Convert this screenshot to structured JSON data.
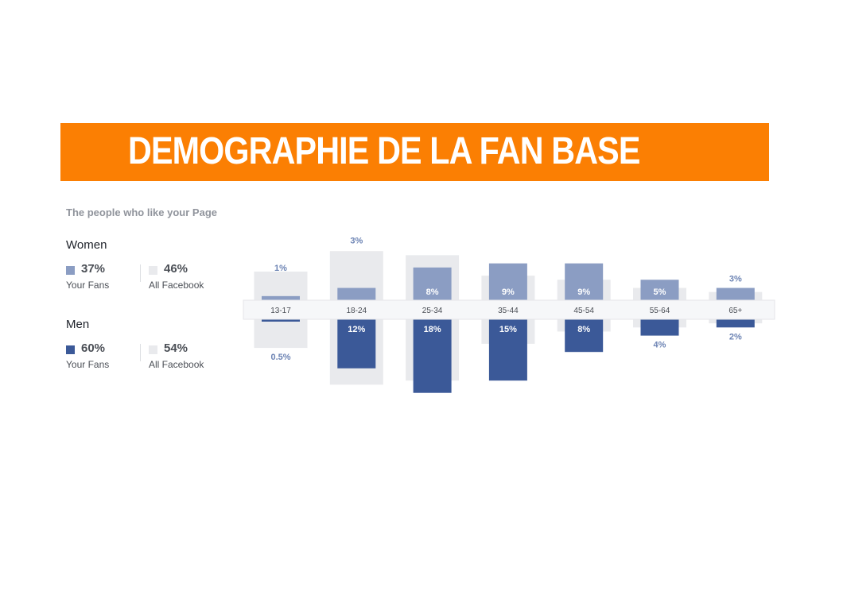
{
  "banner": {
    "title": "DEMOGRAPHIE DE LA FAN BASE"
  },
  "subtitle": "The people who like your Page",
  "legend": {
    "women": {
      "title": "Women",
      "fans": {
        "value": "37%",
        "label": "Your Fans"
      },
      "all": {
        "value": "46%",
        "label": "All Facebook"
      }
    },
    "men": {
      "title": "Men",
      "fans": {
        "value": "60%",
        "label": "Your Fans"
      },
      "all": {
        "value": "54%",
        "label": "All Facebook"
      }
    }
  },
  "colors": {
    "banner": "#fb7f03",
    "women_fans": "#8b9dc3",
    "men_fans": "#3b5998",
    "all_facebook": "#e9eaed",
    "label_text": "#4b4f56"
  },
  "chart_data": {
    "type": "bar",
    "categories": [
      "13-17",
      "18-24",
      "25-34",
      "35-44",
      "45-54",
      "55-64",
      "65+"
    ],
    "series": [
      {
        "name": "Women Your Fans",
        "values": [
          1,
          3,
          8,
          9,
          9,
          5,
          3
        ],
        "labels": [
          "1%",
          "3%",
          "8%",
          "9%",
          "9%",
          "5%",
          "3%"
        ]
      },
      {
        "name": "Men Your Fans",
        "values": [
          0.5,
          12,
          18,
          15,
          8,
          4,
          2
        ],
        "labels": [
          "0.5%",
          "12%",
          "18%",
          "15%",
          "8%",
          "4%",
          "2%"
        ]
      },
      {
        "values": [
          7,
          12,
          11,
          6,
          5,
          3,
          2
        ]
      },
      {
        "values": [
          7,
          16,
          15,
          6,
          3,
          2,
          1
        ]
      }
    ]
  }
}
